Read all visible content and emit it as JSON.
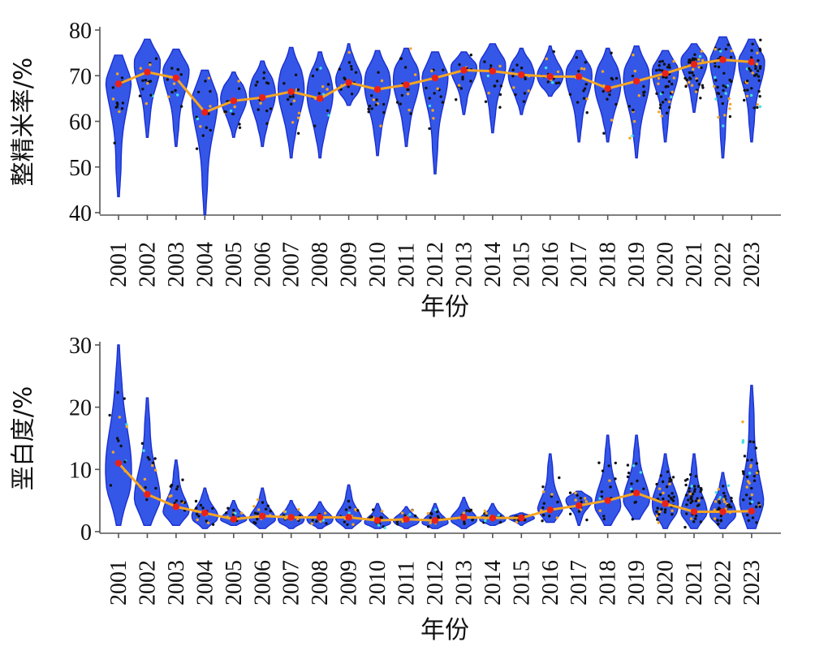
{
  "chart_data": [
    {
      "type": "violin",
      "title": "",
      "xlabel": "年份",
      "ylabel": "整精米率/%",
      "ylim": [
        40,
        80
      ],
      "yticks": [
        40,
        50,
        60,
        70,
        80
      ],
      "categories": [
        "2001",
        "2002",
        "2003",
        "2004",
        "2005",
        "2006",
        "2007",
        "2008",
        "2009",
        "2010",
        "2011",
        "2012",
        "2013",
        "2014",
        "2015",
        "2016",
        "2017",
        "2018",
        "2019",
        "2020",
        "2021",
        "2022",
        "2023"
      ],
      "mean": [
        68.2,
        70.8,
        69.5,
        62.0,
        64.5,
        65.2,
        66.5,
        65.0,
        68.5,
        67.0,
        68.0,
        69.5,
        71.2,
        71.0,
        70.2,
        69.8,
        69.8,
        67.2,
        68.8,
        70.5,
        72.5,
        73.5,
        73.0
      ],
      "min": [
        43.5,
        56.5,
        54.5,
        39.5,
        56.5,
        54.5,
        52.0,
        52.0,
        63.5,
        52.5,
        54.5,
        48.5,
        61.5,
        57.5,
        61.5,
        65.5,
        55.5,
        55.5,
        52.0,
        55.5,
        62.0,
        52.0,
        55.5
      ],
      "max": [
        74.5,
        78.0,
        75.8,
        71.2,
        70.8,
        73.2,
        76.2,
        75.2,
        77.0,
        75.5,
        76.0,
        75.2,
        75.2,
        77.0,
        76.0,
        76.5,
        75.5,
        76.0,
        76.5,
        75.5,
        77.0,
        78.5,
        78.0
      ],
      "peak": [
        70.0,
        72.5,
        71.0,
        65.0,
        65.0,
        66.0,
        67.0,
        66.0,
        69.0,
        68.0,
        69.0,
        70.0,
        71.5,
        72.0,
        70.0,
        70.0,
        70.0,
        68.0,
        69.0,
        71.0,
        73.0,
        74.0,
        73.0
      ]
    },
    {
      "type": "violin",
      "title": "",
      "xlabel": "年份",
      "ylabel": "垩白度/%",
      "ylim": [
        0,
        30
      ],
      "yticks": [
        0,
        10,
        20,
        30
      ],
      "categories": [
        "2001",
        "2002",
        "2003",
        "2004",
        "2005",
        "2006",
        "2007",
        "2008",
        "2009",
        "2010",
        "2011",
        "2012",
        "2013",
        "2014",
        "2015",
        "2016",
        "2017",
        "2018",
        "2019",
        "2020",
        "2021",
        "2022",
        "2023"
      ],
      "mean": [
        11.0,
        6.0,
        4.0,
        3.0,
        2.0,
        2.5,
        2.3,
        2.3,
        2.3,
        1.8,
        2.0,
        1.8,
        2.3,
        2.2,
        2.2,
        3.5,
        4.2,
        5.0,
        6.2,
        4.5,
        3.2,
        3.2,
        3.3
      ],
      "min": [
        1.0,
        1.0,
        1.0,
        0.5,
        1.0,
        0.5,
        0.5,
        0.5,
        0.5,
        0.5,
        0.5,
        0.5,
        0.5,
        1.0,
        1.0,
        1.5,
        1.0,
        1.0,
        2.0,
        0.5,
        0.5,
        0.5,
        0.5
      ],
      "max": [
        30.0,
        21.5,
        11.5,
        7.0,
        5.0,
        7.0,
        5.0,
        4.8,
        7.5,
        4.5,
        4.0,
        4.5,
        5.5,
        4.5,
        3.0,
        12.5,
        6.5,
        15.5,
        15.5,
        12.5,
        12.5,
        9.5,
        23.5
      ],
      "peak": [
        10.0,
        5.0,
        3.0,
        2.5,
        2.0,
        2.0,
        2.0,
        2.0,
        2.0,
        1.5,
        1.8,
        1.5,
        2.0,
        2.0,
        2.2,
        3.0,
        5.0,
        4.0,
        5.0,
        4.5,
        3.0,
        3.0,
        3.0
      ]
    }
  ]
}
